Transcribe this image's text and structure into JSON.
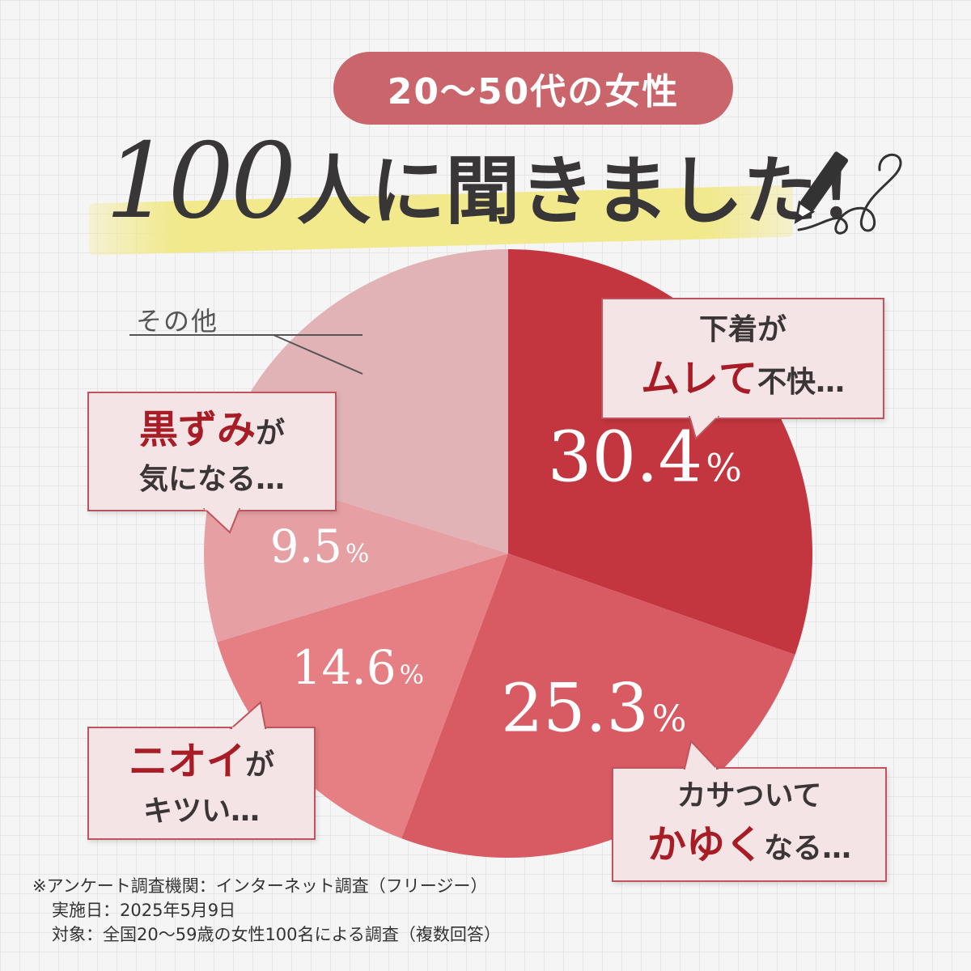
{
  "header": {
    "badge": "20～50代の女性",
    "headline_number": "100",
    "headline_text": "人に聞きました！"
  },
  "chart_data": {
    "type": "pie",
    "slices": [
      {
        "value": 30.4,
        "label": "30.4",
        "unit": "%",
        "color": "#c4363f"
      },
      {
        "value": 25.3,
        "label": "25.3",
        "unit": "%",
        "color": "#d85a63"
      },
      {
        "value": 14.6,
        "label": "14.6",
        "unit": "%",
        "color": "#e57f84"
      },
      {
        "value": 9.5,
        "label": "9.5",
        "unit": "%",
        "color": "#e6a0a4"
      },
      {
        "value": 20.2,
        "label": "",
        "unit": "",
        "color": "#e1b3b6"
      }
    ]
  },
  "callouts": {
    "mure": {
      "pre": "下着が",
      "em": "ムレて",
      "post": "不快…"
    },
    "kasa": {
      "pre": "カサついて",
      "em": "かゆく",
      "post": "なる…"
    },
    "nioi": {
      "em": "ニオイ",
      "post1": "が",
      "post2": "キツい…"
    },
    "kurozumi": {
      "em": "黒ずみ",
      "post1": "が",
      "post2": "気になる…"
    },
    "other": "その他"
  },
  "footnote": {
    "line1": "※アンケート調査機関：インターネット調査（フリージー）",
    "line2": "実施日：2025年5月9日",
    "line3": "対象：全国20～59歳の女性100名による調査（複数回答）"
  }
}
